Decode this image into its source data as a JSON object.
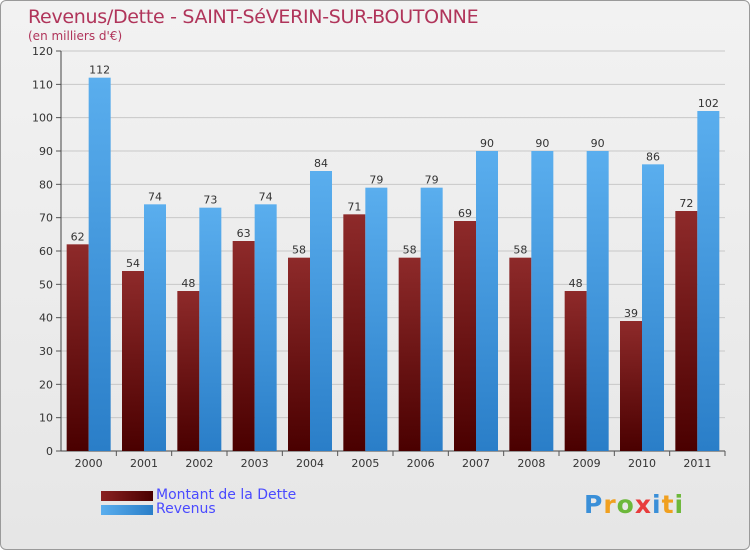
{
  "title": "Revenus/Dette - SAINT-SéVERIN-SUR-BOUTONNE",
  "subtitle": "(en milliers d'€)",
  "logo": {
    "text": "Proxiti",
    "letters": [
      {
        "ch": "P",
        "color": "#3a8fd8"
      },
      {
        "ch": "r",
        "color": "#f0a020"
      },
      {
        "ch": "o",
        "color": "#6cb83a"
      },
      {
        "ch": "x",
        "color": "#e83c3c"
      },
      {
        "ch": "i",
        "color": "#3a8fd8"
      },
      {
        "ch": "t",
        "color": "#f0a020"
      },
      {
        "ch": "i",
        "color": "#6cb83a"
      }
    ]
  },
  "chart_data": {
    "type": "bar",
    "title": "Revenus/Dette - SAINT-SéVERIN-SUR-BOUTONNE",
    "subtitle": "(en milliers d'€)",
    "categories": [
      "2000",
      "2001",
      "2002",
      "2003",
      "2004",
      "2005",
      "2006",
      "2007",
      "2008",
      "2009",
      "2010",
      "2011"
    ],
    "series": [
      {
        "name": "Montant de la Dette",
        "color": "#7a1a1a",
        "values": [
          62,
          54,
          48,
          63,
          58,
          71,
          58,
          69,
          58,
          48,
          39,
          72
        ]
      },
      {
        "name": "Revenus",
        "color": "#4a9ee6",
        "values": [
          112,
          74,
          73,
          74,
          84,
          79,
          79,
          90,
          90,
          90,
          86,
          102
        ]
      }
    ],
    "ylim": [
      0,
      120
    ],
    "yticks": [
      0,
      10,
      20,
      30,
      40,
      50,
      60,
      70,
      80,
      90,
      100,
      110,
      120
    ],
    "grid": true,
    "legend_position": "bottom-left",
    "xlabel": "",
    "ylabel": ""
  }
}
